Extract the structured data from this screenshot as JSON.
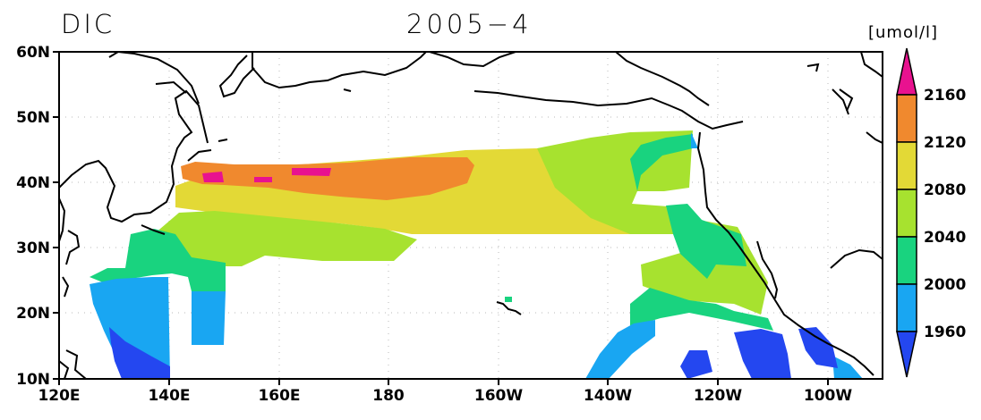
{
  "title": {
    "variable": "DIC",
    "date": "2005−4"
  },
  "colorbar": {
    "units": "[umol/l]",
    "levels": [
      "2160",
      "2120",
      "2080",
      "2040",
      "2000",
      "1960"
    ],
    "colors": {
      "above_2160": "#e8128f",
      "c2120_2160": "#f0892e",
      "c2080_2120": "#e3d936",
      "c2040_2080": "#a7e22f",
      "c2000_2040": "#19d37f",
      "c1960_2000": "#19a6f2",
      "below_1960": "#2447f0"
    }
  },
  "axes": {
    "lat_labels": [
      "60N",
      "50N",
      "40N",
      "30N",
      "20N",
      "10N"
    ],
    "lon_labels": [
      "120E",
      "140E",
      "160E",
      "180",
      "160W",
      "140W",
      "120W",
      "100W"
    ]
  }
}
